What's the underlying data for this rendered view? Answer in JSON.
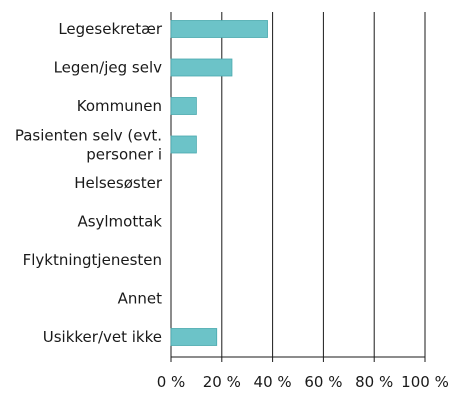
{
  "chart_data": {
    "type": "bar",
    "orientation": "horizontal",
    "categories": [
      [
        "Legesekretær"
      ],
      [
        "Legen/jeg selv"
      ],
      [
        "Kommunen"
      ],
      [
        "Pasienten selv (evt.",
        "personer i"
      ],
      [
        "Helsesøster"
      ],
      [
        "Asylmottak"
      ],
      [
        "Flyktningtjenesten"
      ],
      [
        "Annet"
      ],
      [
        "Usikker/vet ikke"
      ]
    ],
    "values": [
      38,
      24,
      10,
      10,
      0,
      0,
      0,
      0,
      18
    ],
    "xlim": [
      0,
      100
    ],
    "xticks": [
      0,
      20,
      40,
      60,
      80,
      100
    ],
    "xtick_labels": [
      "0 %",
      "20 %",
      "40 %",
      "60 %",
      "80 %",
      "100 %"
    ],
    "grid": true,
    "legend": "none",
    "bar_color": "#6cc3c8"
  }
}
